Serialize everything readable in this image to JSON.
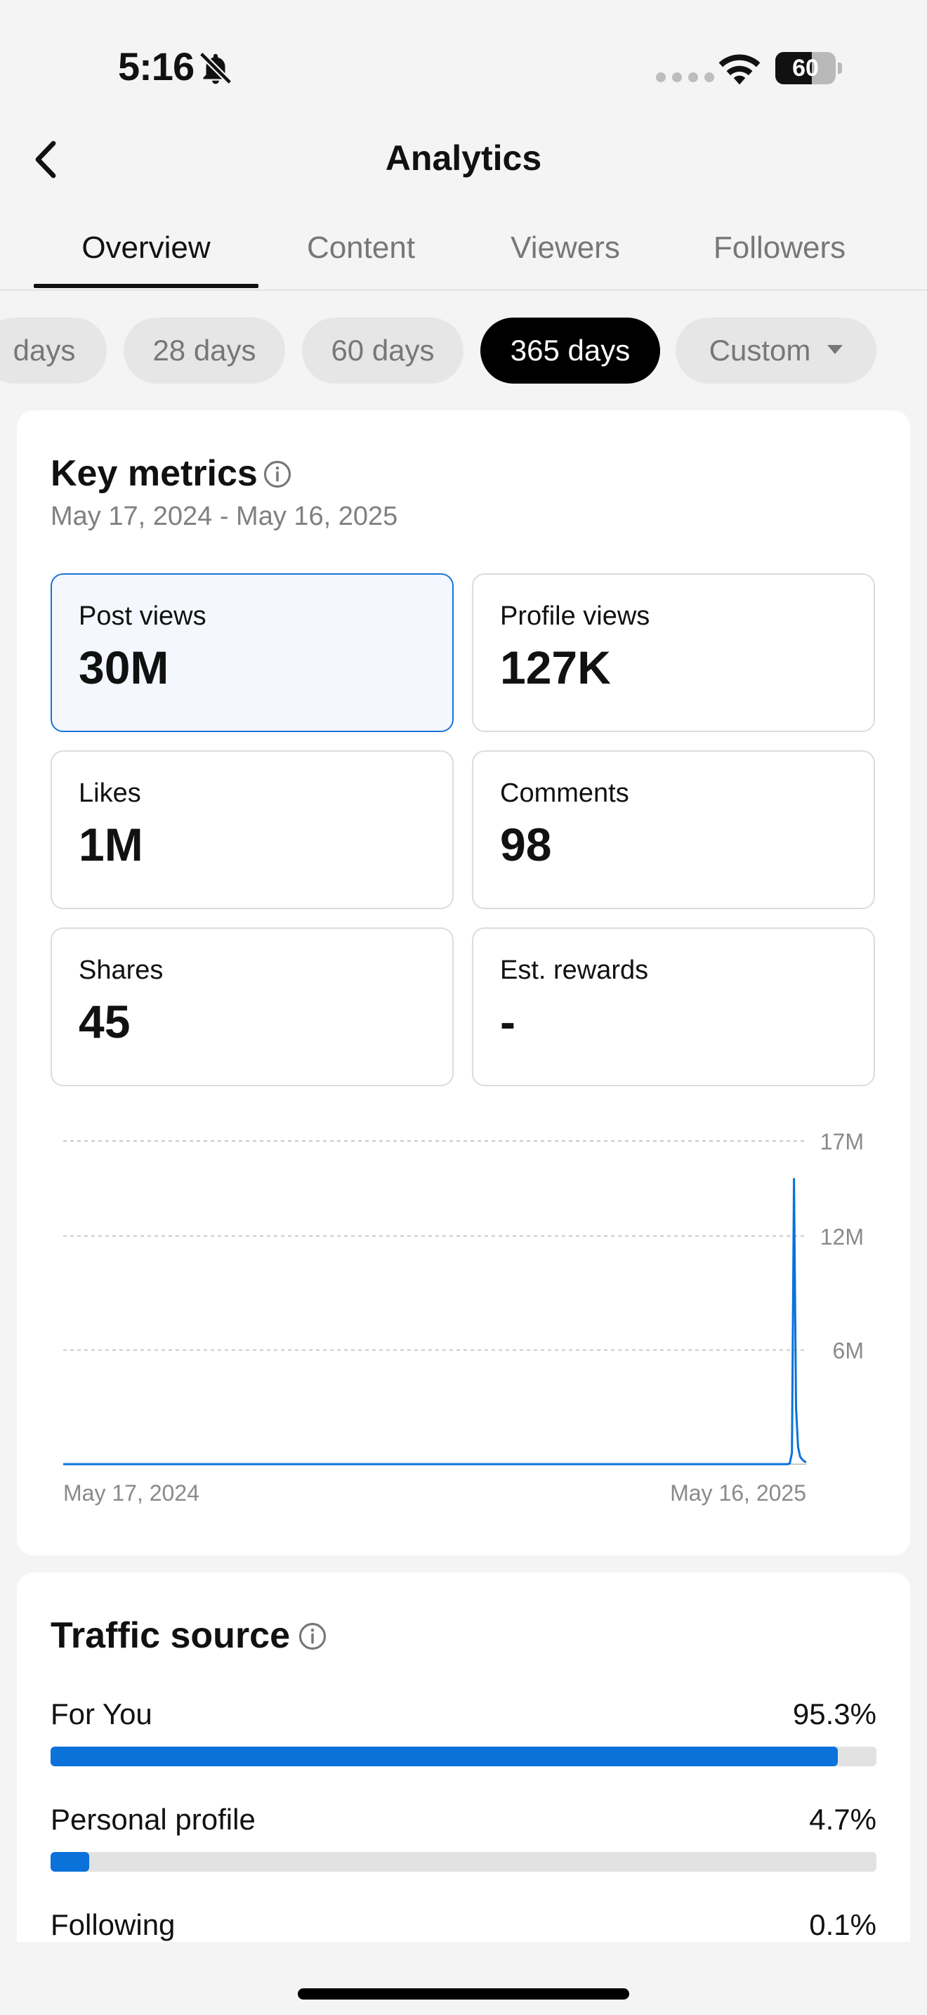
{
  "status_bar": {
    "time": "5:16",
    "battery": "60",
    "battery_level": 0.6
  },
  "header": {
    "title": "Analytics"
  },
  "tabs": [
    {
      "label": "Overview",
      "active": true
    },
    {
      "label": "Content",
      "active": false
    },
    {
      "label": "Viewers",
      "active": false
    },
    {
      "label": "Followers",
      "active": false
    }
  ],
  "date_filters": [
    {
      "label": "days",
      "active": false
    },
    {
      "label": "28 days",
      "active": false
    },
    {
      "label": "60 days",
      "active": false
    },
    {
      "label": "365 days",
      "active": true
    },
    {
      "label": "Custom",
      "active": false
    }
  ],
  "key_metrics": {
    "title": "Key metrics",
    "date_range": "May 17, 2024 - May 16, 2025",
    "items": [
      {
        "label": "Post views",
        "value": "30M",
        "selected": true
      },
      {
        "label": "Profile views",
        "value": "127K",
        "selected": false
      },
      {
        "label": "Likes",
        "value": "1M",
        "selected": false
      },
      {
        "label": "Comments",
        "value": "98",
        "selected": false
      },
      {
        "label": "Shares",
        "value": "45",
        "selected": false
      },
      {
        "label": "Est. rewards",
        "value": "-",
        "selected": false
      }
    ]
  },
  "chart_data": {
    "type": "line",
    "title": "",
    "xlabel": "",
    "ylabel": "",
    "x_tick_labels": [
      "May 17, 2024",
      "May 16, 2025"
    ],
    "y_tick_labels": [
      "17M",
      "12M",
      "6M"
    ],
    "y_ticks": [
      17000000,
      12000000,
      6000000
    ],
    "ylim": [
      0,
      17000000
    ],
    "grid": true,
    "series": [
      {
        "color": "#0b72d9",
        "x": [
          "2024-05-17",
          "2025-05-06",
          "2025-05-07",
          "2025-05-08",
          "2025-05-09",
          "2025-05-10",
          "2025-05-11",
          "2025-05-12",
          "2025-05-13",
          "2025-05-14",
          "2025-05-15",
          "2025-05-16"
        ],
        "y": [
          0,
          0,
          0,
          50000,
          600000,
          15000000,
          3000000,
          900000,
          400000,
          250000,
          150000,
          100000
        ]
      }
    ]
  },
  "traffic_source": {
    "title": "Traffic source",
    "color": "#0b72d9",
    "items": [
      {
        "label": "For You",
        "value": "95.3%",
        "fraction": 0.953
      },
      {
        "label": "Personal profile",
        "value": "4.7%",
        "fraction": 0.047
      },
      {
        "label": "Following",
        "value": "0.1%",
        "fraction": 0.001
      }
    ]
  }
}
